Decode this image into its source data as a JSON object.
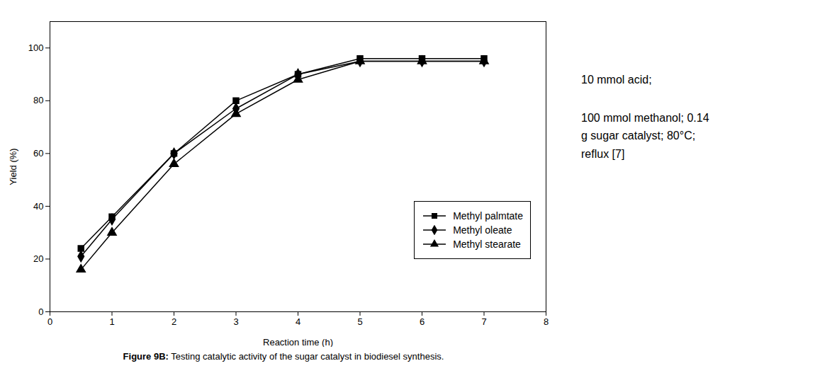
{
  "chart_data": {
    "type": "line",
    "x": [
      0.5,
      1,
      2,
      3,
      4,
      5,
      6,
      7
    ],
    "series": [
      {
        "name": "Methyl palmtate",
        "color": "#000000",
        "marker": "square",
        "values": [
          24,
          36,
          60,
          80,
          90,
          96,
          96,
          96
        ]
      },
      {
        "name": "Methyl oleate",
        "color": "#000000",
        "marker": "diamond",
        "values": [
          21,
          35,
          60,
          77,
          90,
          95,
          95,
          95
        ]
      },
      {
        "name": "Methyl stearate",
        "color": "#000000",
        "marker": "triangle",
        "values": [
          16,
          30,
          56,
          75,
          88,
          95,
          95,
          95
        ]
      }
    ],
    "xlabel": "Reaction time (h)",
    "ylabel": "Yield (%)",
    "xlim": [
      0,
      8
    ],
    "ylim": [
      0,
      110
    ],
    "xticks": [
      0,
      1,
      2,
      3,
      4,
      5,
      6,
      7,
      8
    ],
    "yticks": [
      0,
      20,
      40,
      60,
      80,
      100
    ],
    "grid": false,
    "legend": "lower right",
    "annotations": [
      "10 mmol acid;",
      "100 mmol methanol; 0.14\ng sugar catalyst; 80°C;\nreflux [7]"
    ],
    "caption_label": "Figure 9B:",
    "caption": "Testing catalytic activity of the sugar catalyst in biodiesel synthesis."
  }
}
